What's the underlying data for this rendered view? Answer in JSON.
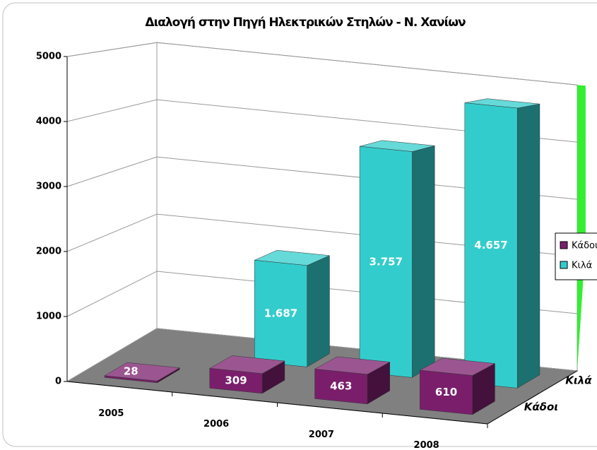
{
  "chart_data": {
    "type": "bar",
    "title": "Διαλογή στην Πηγή Ηλεκτρικών Στηλών - Ν. Χανίων",
    "categories": [
      "2005",
      "2006",
      "2007",
      "2008"
    ],
    "series": [
      {
        "name": "Κάδοι",
        "color": "#7a1e6c",
        "values": [
          28,
          309,
          463,
          610
        ]
      },
      {
        "name": "Κιλά",
        "color": "#33cccc",
        "values": [
          null,
          1687,
          3757,
          4657
        ],
        "value_labels": [
          null,
          "1.687",
          "3.757",
          "4.657"
        ]
      }
    ],
    "ylim": [
      0,
      5000
    ],
    "yticks": [
      0,
      1000,
      2000,
      3000,
      4000,
      5000
    ],
    "grid": true,
    "legend": "right"
  }
}
